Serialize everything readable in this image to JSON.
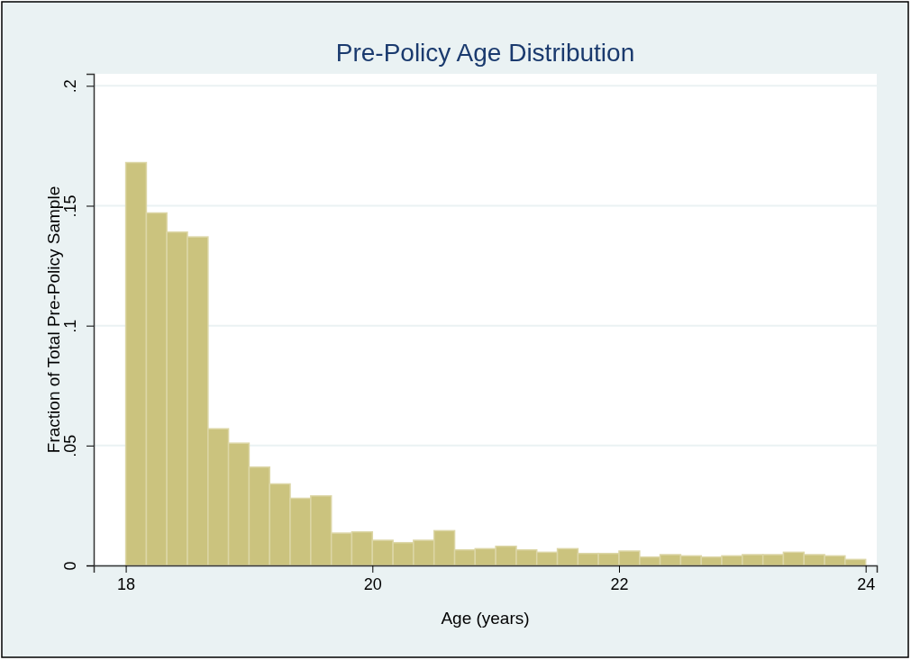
{
  "chart_data": {
    "type": "histogram",
    "title": "Pre-Policy Age Distribution",
    "xlabel": "Age (years)",
    "ylabel": "Fraction of Total Pre-Policy Sample",
    "bins": [
      18,
      18.167,
      18.333,
      18.5,
      18.667,
      18.833,
      19,
      19.167,
      19.333,
      19.5,
      19.667,
      19.833,
      20,
      20.167,
      20.333,
      20.5,
      20.667,
      20.833,
      21,
      21.167,
      21.333,
      21.5,
      21.667,
      21.833,
      22,
      22.167,
      22.333,
      22.5,
      22.667,
      22.833,
      23,
      23.167,
      23.333,
      23.5,
      23.667,
      23.833,
      24
    ],
    "values": [
      0.168,
      0.147,
      0.139,
      0.137,
      0.057,
      0.051,
      0.041,
      0.034,
      0.028,
      0.029,
      0.0135,
      0.014,
      0.0105,
      0.0095,
      0.0105,
      0.0145,
      0.0065,
      0.007,
      0.008,
      0.0065,
      0.0055,
      0.007,
      0.005,
      0.005,
      0.006,
      0.0035,
      0.0045,
      0.004,
      0.0035,
      0.004,
      0.0045,
      0.0045,
      0.0055,
      0.0045,
      0.004,
      0.0025
    ],
    "color": "#cbc37e",
    "xlim": [
      17.74,
      24.09
    ],
    "ylim": [
      0,
      0.205
    ],
    "xticks": [
      18,
      20,
      22,
      24
    ],
    "yticks": [
      {
        "value": 0,
        "label": "0"
      },
      {
        "value": 0.05,
        "label": ".05"
      },
      {
        "value": 0.1,
        "label": ".1"
      },
      {
        "value": 0.15,
        "label": ".15"
      },
      {
        "value": 0.2,
        "label": ".2"
      }
    ],
    "grid": "y"
  }
}
